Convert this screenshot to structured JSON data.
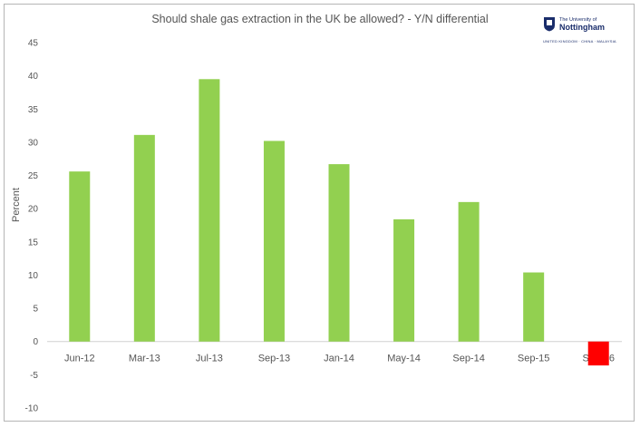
{
  "header": {
    "title": "Should shale gas extraction in the UK be allowed? - Y/N differential"
  },
  "logo": {
    "line1": "The University of",
    "line2": "Nottingham",
    "tagline": "UNITED KINGDOM · CHINA · MALAYSIA",
    "color": "#1a2d6b"
  },
  "chart_data": {
    "type": "bar",
    "title": "Should shale gas extraction in the UK be allowed? - Y/N differential",
    "xlabel": "",
    "ylabel": "Percent",
    "categories": [
      "Jun-12",
      "Mar-13",
      "Jul-13",
      "Sep-13",
      "Jan-14",
      "May-14",
      "Sep-14",
      "Sep-15",
      "Sep-16"
    ],
    "values": [
      25.6,
      31.1,
      39.5,
      30.2,
      26.7,
      18.4,
      21.0,
      10.4,
      -3.6
    ],
    "ylim": [
      -10,
      45
    ],
    "yticks": [
      -10,
      -5,
      0,
      5,
      10,
      15,
      20,
      25,
      30,
      35,
      40,
      45
    ],
    "grid": false,
    "colors": {
      "positive": "#92d050",
      "negative": "#ff0000"
    }
  }
}
